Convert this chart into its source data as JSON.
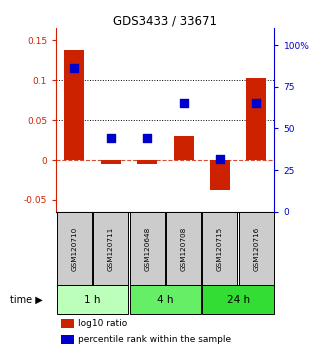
{
  "title": "GDS3433 / 33671",
  "samples": [
    "GSM120710",
    "GSM120711",
    "GSM120648",
    "GSM120708",
    "GSM120715",
    "GSM120716"
  ],
  "log10_ratio": [
    0.138,
    -0.005,
    -0.005,
    0.03,
    -0.038,
    0.103
  ],
  "percentile_rank": [
    86,
    44,
    44,
    65,
    32,
    65
  ],
  "bar_color": "#cc2200",
  "dot_color": "#0000cc",
  "ylim_left": [
    -0.065,
    0.165
  ],
  "ylim_right": [
    0,
    110
  ],
  "yticks_left": [
    -0.05,
    0,
    0.05,
    0.1,
    0.15
  ],
  "yticks_left_labels": [
    "-0.05",
    "0",
    "0.05",
    "0.1",
    "0.15"
  ],
  "yticks_right": [
    0,
    25,
    50,
    75,
    100
  ],
  "yticks_right_labels": [
    "0",
    "25",
    "50",
    "75",
    "100%"
  ],
  "hline_y": [
    0.05,
    0.1
  ],
  "group_colors": [
    "#bbffbb",
    "#66ee66",
    "#33dd33"
  ],
  "group_labels": [
    "1 h",
    "4 h",
    "24 h"
  ],
  "group_ranges": [
    [
      0,
      1
    ],
    [
      2,
      3
    ],
    [
      4,
      5
    ]
  ],
  "sample_box_color": "#cccccc",
  "bar_width": 0.55,
  "dot_size": 28
}
